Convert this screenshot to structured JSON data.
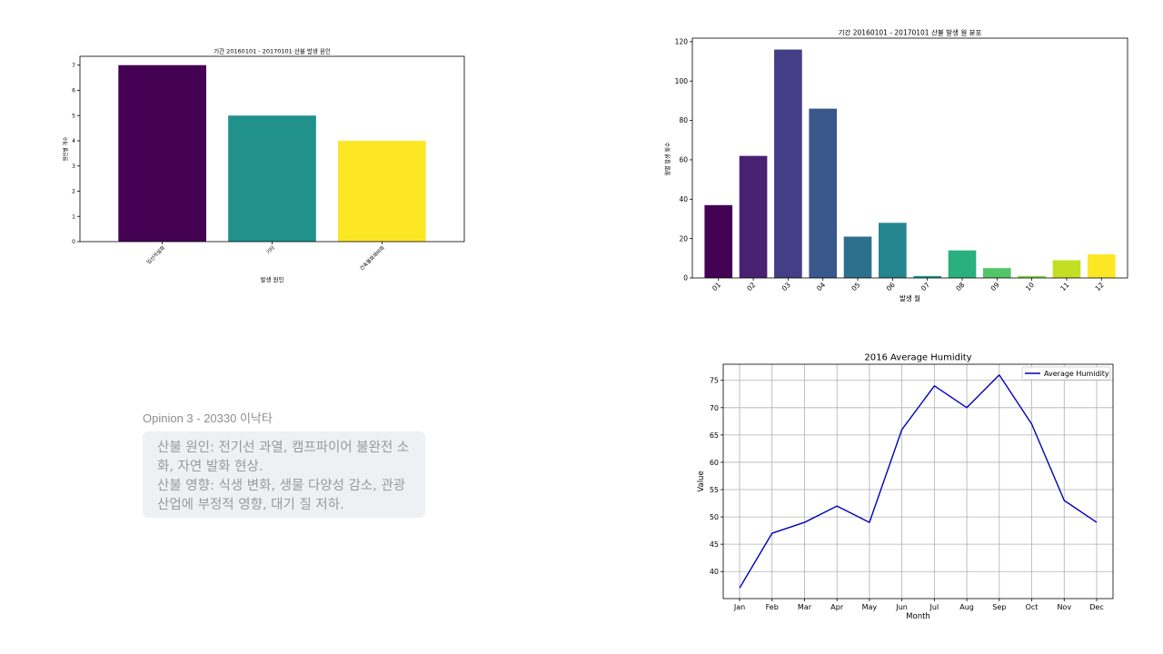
{
  "opinion": {
    "header": "Opinion 3 - 20330 이낙타",
    "lines": [
      "산불 원인: 전기선 과열, 캠프파이어 불완전 소화, 자연 발화 현상.",
      "산불 영향: 식생 변화, 생물 다양성 감소, 관광 산업에 부정적 영향, 대기 질 저하."
    ]
  },
  "chart_data": [
    {
      "type": "bar",
      "title": "기간 20160101 - 20170101 산불 발생 원인",
      "xlabel": "발생 원인",
      "ylabel": "원인별 개수",
      "categories": [
        "입산자실화",
        "기타",
        "건축물화재비화"
      ],
      "values": [
        7,
        5,
        4
      ],
      "ylim": [
        0,
        7.35
      ],
      "yticks": [
        0,
        1,
        2,
        3,
        4,
        5,
        6,
        7
      ],
      "colors": [
        "#440154",
        "#21918c",
        "#fde725"
      ],
      "grid": false
    },
    {
      "type": "bar",
      "title": "기간 20160101 - 20170101 산불 발생 월 분포",
      "xlabel": "발생 월",
      "ylabel": "월별 발생 횟수",
      "categories": [
        "01",
        "02",
        "03",
        "04",
        "05",
        "06",
        "07",
        "08",
        "09",
        "10",
        "11",
        "12"
      ],
      "values": [
        37,
        62,
        116,
        86,
        21,
        28,
        1,
        14,
        5,
        1,
        9,
        12
      ],
      "ylim": [
        0,
        121.8
      ],
      "yticks": [
        0,
        20,
        40,
        60,
        80,
        100,
        120
      ],
      "colors": [
        "#440154",
        "#482173",
        "#433e85",
        "#38588c",
        "#2d708e",
        "#25858e",
        "#1e9b8a",
        "#2ab07f",
        "#52c569",
        "#86d549",
        "#c2df23",
        "#fde725"
      ],
      "grid": false
    },
    {
      "type": "line",
      "title": "2016 Average Humidity",
      "xlabel": "Month",
      "ylabel": "Value",
      "categories": [
        "Jan",
        "Feb",
        "Mar",
        "Apr",
        "May",
        "Jun",
        "Jul",
        "Aug",
        "Sep",
        "Oct",
        "Nov",
        "Dec"
      ],
      "series": [
        {
          "name": "Average Humidity",
          "values": [
            37,
            47,
            49,
            52,
            49,
            66,
            74,
            70,
            76,
            67,
            53,
            49
          ],
          "color": "#0000bb"
        }
      ],
      "ylim": [
        35.05,
        77.95
      ],
      "yticks": [
        40,
        45,
        50,
        55,
        60,
        65,
        70,
        75
      ],
      "grid": true,
      "legend": "top-right"
    }
  ]
}
